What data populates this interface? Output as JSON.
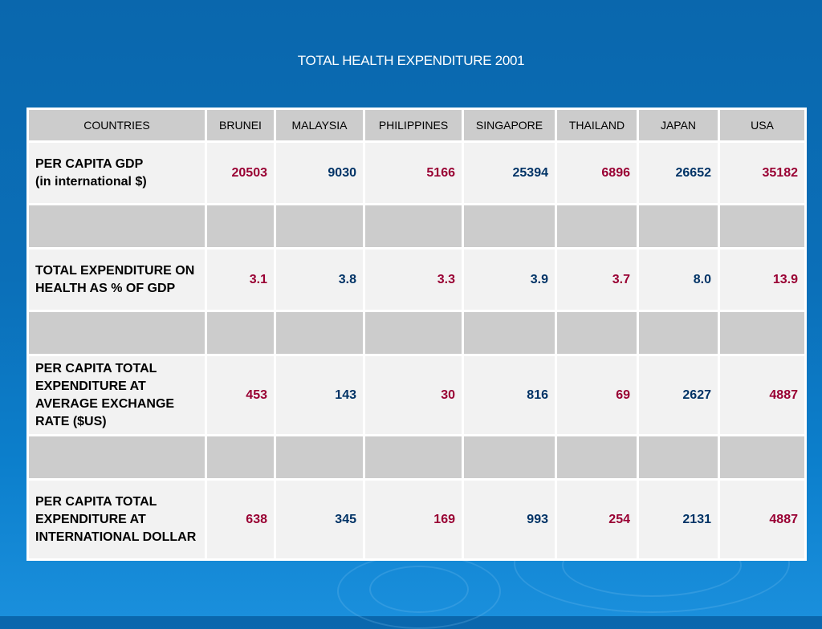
{
  "title": "TOTAL HEALTH EXPENDITURE 2001",
  "colors": {
    "red_value": "#990033",
    "blue_value": "#003366",
    "header_bg": "#cccccc",
    "cell_bg": "#f2f2f2"
  },
  "table": {
    "headers": [
      "COUNTRIES",
      "BRUNEI",
      "MALAYSIA",
      "PHILIPPINES",
      "SINGAPORE",
      "THAILAND",
      "JAPAN",
      "USA"
    ],
    "rows": [
      {
        "label": "PER CAPITA GDP\n (in international $)",
        "values": [
          "20503",
          "9030",
          "5166",
          "25394",
          "6896",
          "26652",
          "35182"
        ]
      },
      {
        "label": "TOTAL EXPENDITURE ON HEALTH AS % OF GDP",
        "values": [
          "3.1",
          "3.8",
          "3.3",
          "3.9",
          "3.7",
          "8.0",
          "13.9"
        ]
      },
      {
        "label": "PER CAPITA TOTAL EXPENDITURE AT AVERAGE EXCHANGE RATE ($US)",
        "values": [
          "453",
          "143",
          "30",
          "816",
          "69",
          "2627",
          "4887"
        ]
      },
      {
        "label": "PER CAPITA TOTAL EXPENDITURE AT INTERNATIONAL DOLLAR",
        "values": [
          "638",
          "345",
          "169",
          "993",
          "254",
          "2131",
          "4887"
        ]
      }
    ]
  }
}
